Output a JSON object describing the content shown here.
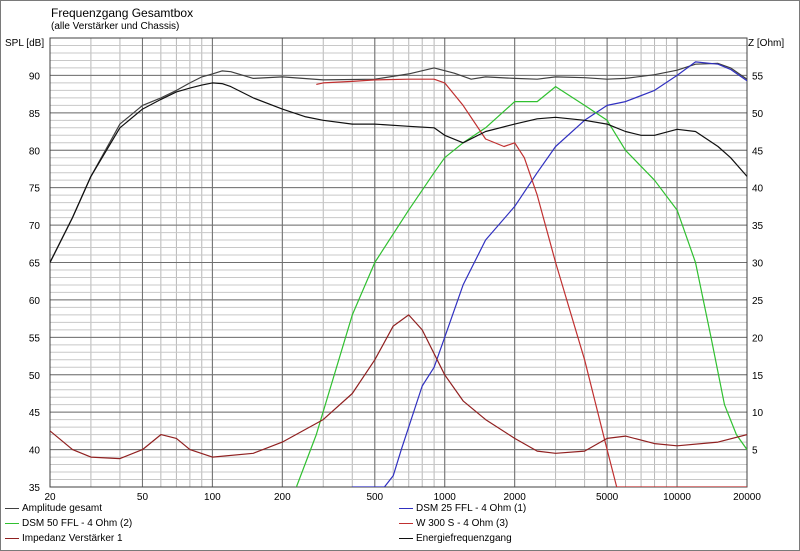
{
  "chart_data": {
    "type": "line",
    "title": "Frequenzgang Gesamtbox",
    "subtitle": "(alle Verstärker und Chassis)",
    "ylabel": "SPL [dB]",
    "y2label": "Z [Ohm]",
    "xscale": "log",
    "xlim": [
      20,
      20000
    ],
    "ylim": [
      35,
      95
    ],
    "y2lim": [
      0,
      60
    ],
    "x_ticks": [
      20,
      50,
      100,
      200,
      500,
      1000,
      2000,
      5000,
      10000,
      20000
    ],
    "x_tick_labels": [
      "20",
      "50",
      "100",
      "200",
      "500",
      "1000",
      "2000",
      "5000",
      "10000",
      "20000"
    ],
    "y_ticks": [
      35,
      40,
      45,
      50,
      55,
      60,
      65,
      70,
      75,
      80,
      85,
      90
    ],
    "y2_ticks": [
      5,
      10,
      15,
      20,
      25,
      30,
      35,
      40,
      45,
      50,
      55
    ],
    "grid": true,
    "legend_position": "bottom",
    "series": [
      {
        "name": "Amplitude gesamt",
        "axis": "left",
        "color": "#404040",
        "x": [
          20,
          25,
          30,
          40,
          50,
          60,
          70,
          80,
          90,
          100,
          110,
          120,
          150,
          200,
          300,
          500,
          700,
          900,
          1100,
          1300,
          1500,
          2000,
          2500,
          3000,
          4000,
          5000,
          6000,
          8000,
          10000,
          12000,
          15000,
          17000,
          20000
        ],
        "y": [
          65,
          71,
          76.5,
          83.5,
          86,
          87,
          88,
          89,
          89.8,
          90.2,
          90.6,
          90.5,
          89.6,
          89.8,
          89.4,
          89.5,
          90.2,
          91,
          90.3,
          89.5,
          89.8,
          89.6,
          89.5,
          89.8,
          89.7,
          89.5,
          89.6,
          90.1,
          90.7,
          91.5,
          91.6,
          91,
          89.5
        ]
      },
      {
        "name": "DSM 25 FFL - 4 Ohm (1)",
        "axis": "left",
        "color": "#3030c0",
        "x": [
          400,
          550,
          600,
          650,
          700,
          800,
          900,
          1000,
          1200,
          1500,
          2000,
          2500,
          3000,
          4000,
          5000,
          6000,
          8000,
          10000,
          12000,
          15000,
          17000,
          20000
        ],
        "y": [
          35,
          35,
          36.5,
          40,
          43,
          48.5,
          51,
          55,
          62,
          68,
          72.5,
          77,
          80.5,
          84,
          86,
          86.5,
          88,
          90,
          91.8,
          91.5,
          90.8,
          89.3
        ]
      },
      {
        "name": "DSM 50 FFL - 4 Ohm (2)",
        "axis": "left",
        "color": "#30c030",
        "x": [
          230,
          280,
          320,
          400,
          500,
          700,
          900,
          1000,
          1200,
          1500,
          2000,
          2500,
          3000,
          4000,
          5000,
          6000,
          8000,
          10000,
          12000,
          14000,
          16000,
          18000,
          20000
        ],
        "y": [
          35,
          42,
          48,
          58,
          65,
          72,
          77,
          79,
          81,
          83,
          86.5,
          86.5,
          88.5,
          86,
          84,
          80,
          76,
          72,
          65,
          55,
          46,
          42,
          40
        ]
      },
      {
        "name": "W 300 S - 4 Ohm (3)",
        "axis": "left",
        "color": "#c03030",
        "x": [
          280,
          300,
          400,
          500,
          700,
          900,
          1000,
          1200,
          1500,
          1800,
          2000,
          2200,
          2500,
          3000,
          4000,
          5000,
          5500,
          6000,
          20000
        ],
        "y": [
          88.8,
          89,
          89.2,
          89.4,
          89.5,
          89.5,
          89,
          86,
          81.5,
          80.5,
          81,
          79,
          74,
          65,
          52,
          40,
          35,
          35,
          35
        ]
      },
      {
        "name": "Impedanz Verstärker 1",
        "axis": "right",
        "color": "#902020",
        "x": [
          20,
          25,
          30,
          40,
          50,
          60,
          70,
          80,
          100,
          150,
          200,
          300,
          400,
          500,
          600,
          700,
          800,
          1000,
          1200,
          1500,
          2000,
          2500,
          3000,
          4000,
          5000,
          6000,
          8000,
          10000,
          15000,
          20000
        ],
        "y": [
          7.5,
          5,
          4,
          3.8,
          5,
          7,
          6.5,
          5,
          4,
          4.5,
          6,
          9,
          12.5,
          17,
          21.5,
          23,
          21,
          15,
          11.5,
          9,
          6.5,
          4.8,
          4.5,
          4.8,
          6.5,
          6.8,
          5.8,
          5.5,
          6,
          7
        ]
      },
      {
        "name": "Energiefrequenzgang",
        "axis": "left",
        "color": "#101010",
        "x": [
          20,
          25,
          30,
          40,
          50,
          60,
          70,
          80,
          90,
          100,
          110,
          120,
          150,
          200,
          250,
          300,
          400,
          500,
          700,
          900,
          1000,
          1200,
          1500,
          2000,
          2500,
          3000,
          4000,
          5000,
          6000,
          7000,
          8000,
          10000,
          12000,
          15000,
          17000,
          20000
        ],
        "y": [
          65,
          71,
          76.5,
          83,
          85.5,
          86.8,
          87.8,
          88.3,
          88.7,
          89,
          88.9,
          88.5,
          87,
          85.5,
          84.5,
          84,
          83.5,
          83.5,
          83.2,
          83,
          82,
          81,
          82.5,
          83.5,
          84.2,
          84.4,
          84,
          83.5,
          82.5,
          82,
          82,
          82.8,
          82.5,
          80.5,
          79,
          76.5
        ]
      }
    ]
  }
}
